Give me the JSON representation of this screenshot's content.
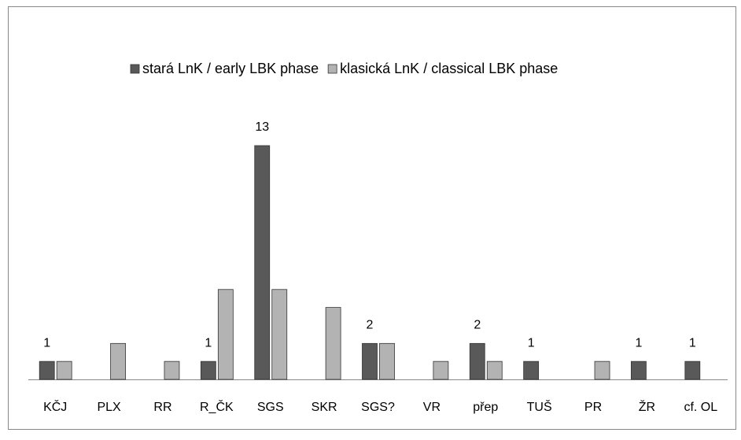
{
  "chart_data": {
    "type": "bar",
    "categories": [
      "KČJ",
      "PLX",
      "RR",
      "R_ČK",
      "SGS",
      "SKR",
      "SGS?",
      "VR",
      "přep",
      "TUŠ",
      "PR",
      "ŽR",
      "cf. OL"
    ],
    "series": [
      {
        "name": "stará LnK / early LBK phase",
        "color": "#595959",
        "data_labels": true,
        "values": [
          1,
          null,
          null,
          1,
          13,
          null,
          2,
          null,
          2,
          1,
          null,
          1,
          1
        ]
      },
      {
        "name": "klasická LnK / classical LBK phase",
        "color": "#b3b3b3",
        "data_labels": false,
        "values": [
          1,
          2,
          1,
          5,
          5,
          4,
          2,
          1,
          1,
          null,
          1,
          null,
          null
        ]
      }
    ],
    "ylim": [
      0,
      13
    ],
    "legend": "top"
  }
}
